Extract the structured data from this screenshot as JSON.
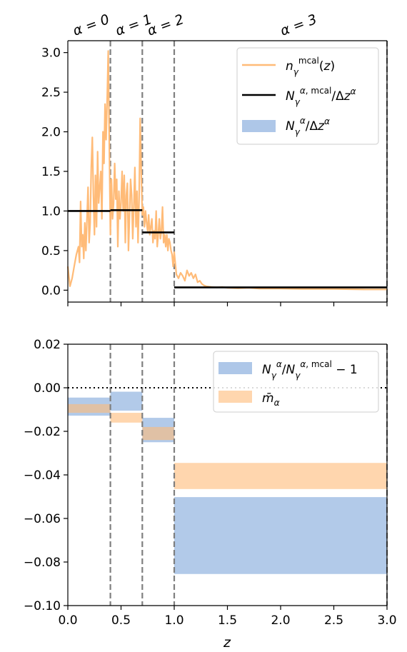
{
  "chart_data": [
    {
      "type": "line",
      "panel": "top",
      "xlabel": "",
      "ylabel": "",
      "xlim": [
        0.0,
        3.0
      ],
      "ylim": [
        -0.15,
        3.15
      ],
      "grid": false,
      "legend_placement": "top-right",
      "xticks": [
        0.0,
        0.5,
        1.0,
        1.5,
        2.0,
        2.5,
        3.0
      ],
      "yticks": [
        0.0,
        0.5,
        1.0,
        1.5,
        2.0,
        2.5,
        3.0
      ],
      "ytick_labels": [
        "0.0",
        "0.5",
        "1.0",
        "1.5",
        "2.0",
        "2.5",
        "3.0"
      ],
      "region_boundaries": [
        0.4,
        0.7,
        1.0,
        3.0
      ],
      "region_labels": [
        {
          "text": "α = 0",
          "x": 0.0
        },
        {
          "text": "α = 1",
          "x": 0.4
        },
        {
          "text": "α = 2",
          "x": 0.7
        },
        {
          "text": "α = 3",
          "x": 1.95
        }
      ],
      "legend": [
        {
          "name": "n_γ^mcal(z)",
          "color": "#ffbb78",
          "kind": "line"
        },
        {
          "name": "N_γ^{α,mcal}/Δz^α",
          "color": "#000000",
          "kind": "line"
        },
        {
          "name": "N_γ^α/Δz^α",
          "color": "#aec7e8",
          "kind": "patch"
        }
      ],
      "series": [
        {
          "name": "n_γ^mcal(z)",
          "color": "#ffbb78",
          "x": [
            0.0,
            0.02,
            0.04,
            0.06,
            0.08,
            0.1,
            0.11,
            0.12,
            0.13,
            0.14,
            0.15,
            0.16,
            0.17,
            0.18,
            0.19,
            0.2,
            0.21,
            0.22,
            0.23,
            0.24,
            0.25,
            0.26,
            0.27,
            0.28,
            0.29,
            0.3,
            0.31,
            0.32,
            0.33,
            0.34,
            0.35,
            0.36,
            0.37,
            0.38,
            0.39,
            0.4,
            0.41,
            0.42,
            0.43,
            0.44,
            0.45,
            0.46,
            0.47,
            0.48,
            0.49,
            0.5,
            0.51,
            0.52,
            0.53,
            0.54,
            0.55,
            0.56,
            0.57,
            0.58,
            0.59,
            0.6,
            0.61,
            0.62,
            0.63,
            0.64,
            0.65,
            0.66,
            0.67,
            0.68,
            0.69,
            0.7,
            0.71,
            0.72,
            0.73,
            0.74,
            0.75,
            0.76,
            0.77,
            0.78,
            0.79,
            0.8,
            0.81,
            0.82,
            0.83,
            0.84,
            0.85,
            0.86,
            0.87,
            0.88,
            0.89,
            0.9,
            0.91,
            0.92,
            0.93,
            0.94,
            0.95,
            0.96,
            0.97,
            0.98,
            0.99,
            1.0,
            1.02,
            1.04,
            1.06,
            1.08,
            1.1,
            1.12,
            1.14,
            1.16,
            1.18,
            1.2,
            1.22,
            1.24,
            1.26,
            1.28,
            1.3,
            1.35,
            1.4,
            1.45,
            1.5,
            1.6,
            1.7,
            1.8,
            2.0,
            2.2,
            2.5,
            2.8,
            3.0
          ],
          "values": [
            0.3,
            0.05,
            0.15,
            0.3,
            0.45,
            0.55,
            0.35,
            1.12,
            0.55,
            0.7,
            0.4,
            0.85,
            0.5,
            0.9,
            1.3,
            0.6,
            0.85,
            1.55,
            1.93,
            1.2,
            0.7,
            1.45,
            0.8,
            1.75,
            1.1,
            1.3,
            1.5,
            0.9,
            2.0,
            1.6,
            2.35,
            1.9,
            2.42,
            3.02,
            1.8,
            0.7,
            1.4,
            0.9,
            1.1,
            1.6,
            1.15,
            1.4,
            0.55,
            1.25,
            0.9,
            1.1,
            1.5,
            1.0,
            1.45,
            0.6,
            1.2,
            1.35,
            0.5,
            0.95,
            1.4,
            1.2,
            0.65,
            1.05,
            1.55,
            0.8,
            1.25,
            0.6,
            1.15,
            2.17,
            1.5,
            0.95,
            1.05,
            0.8,
            1.0,
            0.85,
            0.75,
            0.95,
            0.7,
            0.8,
            0.9,
            0.6,
            0.75,
            0.65,
            1.0,
            0.55,
            0.7,
            0.9,
            0.65,
            0.75,
            1.05,
            0.6,
            0.7,
            0.55,
            0.7,
            0.5,
            0.65,
            0.6,
            0.5,
            0.45,
            0.3,
            0.48,
            0.2,
            0.15,
            0.22,
            0.18,
            0.12,
            0.25,
            0.18,
            0.22,
            0.15,
            0.2,
            0.1,
            0.12,
            0.08,
            0.06,
            0.05,
            0.04,
            0.035,
            0.04,
            0.03,
            0.025,
            0.03,
            0.02,
            0.02,
            0.015,
            0.015,
            0.01,
            0.01
          ]
        },
        {
          "name": "N_γ^{α,mcal}/Δz^α",
          "color": "#000000",
          "segments": [
            {
              "x0": 0.0,
              "x1": 0.4,
              "y": 1.0
            },
            {
              "x0": 0.4,
              "x1": 0.7,
              "y": 1.01
            },
            {
              "x0": 0.7,
              "x1": 1.0,
              "y": 0.73
            },
            {
              "x0": 1.0,
              "x1": 3.0,
              "y": 0.035
            }
          ]
        }
      ]
    },
    {
      "type": "bar",
      "panel": "bottom",
      "xlabel": "z",
      "ylabel": "",
      "xlim": [
        0.0,
        3.0
      ],
      "ylim": [
        -0.1,
        0.02
      ],
      "grid": false,
      "legend_placement": "top-right",
      "xticks": [
        0.0,
        0.5,
        1.0,
        1.5,
        2.0,
        2.5,
        3.0
      ],
      "xtick_labels": [
        "0.0",
        "0.5",
        "1.0",
        "1.5",
        "2.0",
        "2.5",
        "3.0"
      ],
      "yticks": [
        0.02,
        0.0,
        -0.02,
        -0.04,
        -0.06,
        -0.08,
        -0.1
      ],
      "ytick_labels": [
        "0.02",
        "0.00",
        "−0.02",
        "−0.04",
        "−0.06",
        "−0.08",
        "−0.10"
      ],
      "zero_line": {
        "y": 0.0,
        "style": "dotted"
      },
      "region_boundaries": [
        0.4,
        0.7,
        1.0,
        3.0
      ],
      "legend": [
        {
          "name": "N_γ^α/N_γ^{α,mcal} − 1",
          "color": "#aec7e8",
          "kind": "patch"
        },
        {
          "name": "m̄_α",
          "color": "#ffbb78",
          "kind": "patch"
        }
      ],
      "series": [
        {
          "name": "N_γ^α/N_γ^{α,mcal} − 1",
          "color": "#aec7e8",
          "bands": [
            {
              "x0": 0.0,
              "x1": 0.4,
              "low": -0.0128,
              "high": -0.0045
            },
            {
              "x0": 0.4,
              "x1": 0.7,
              "low": -0.0105,
              "high": -0.0018
            },
            {
              "x0": 0.7,
              "x1": 1.0,
              "low": -0.025,
              "high": -0.0138
            },
            {
              "x0": 1.0,
              "x1": 3.0,
              "low": -0.0855,
              "high": -0.0502
            }
          ]
        },
        {
          "name": "m̄_α",
          "color": "#ffbb78",
          "bands": [
            {
              "x0": 0.0,
              "x1": 0.4,
              "low": -0.0115,
              "high": -0.0075
            },
            {
              "x0": 0.4,
              "x1": 0.7,
              "low": -0.016,
              "high": -0.0115
            },
            {
              "x0": 0.7,
              "x1": 1.0,
              "low": -0.024,
              "high": -0.018
            },
            {
              "x0": 1.0,
              "x1": 3.0,
              "low": -0.0465,
              "high": -0.0345
            }
          ]
        }
      ]
    }
  ]
}
